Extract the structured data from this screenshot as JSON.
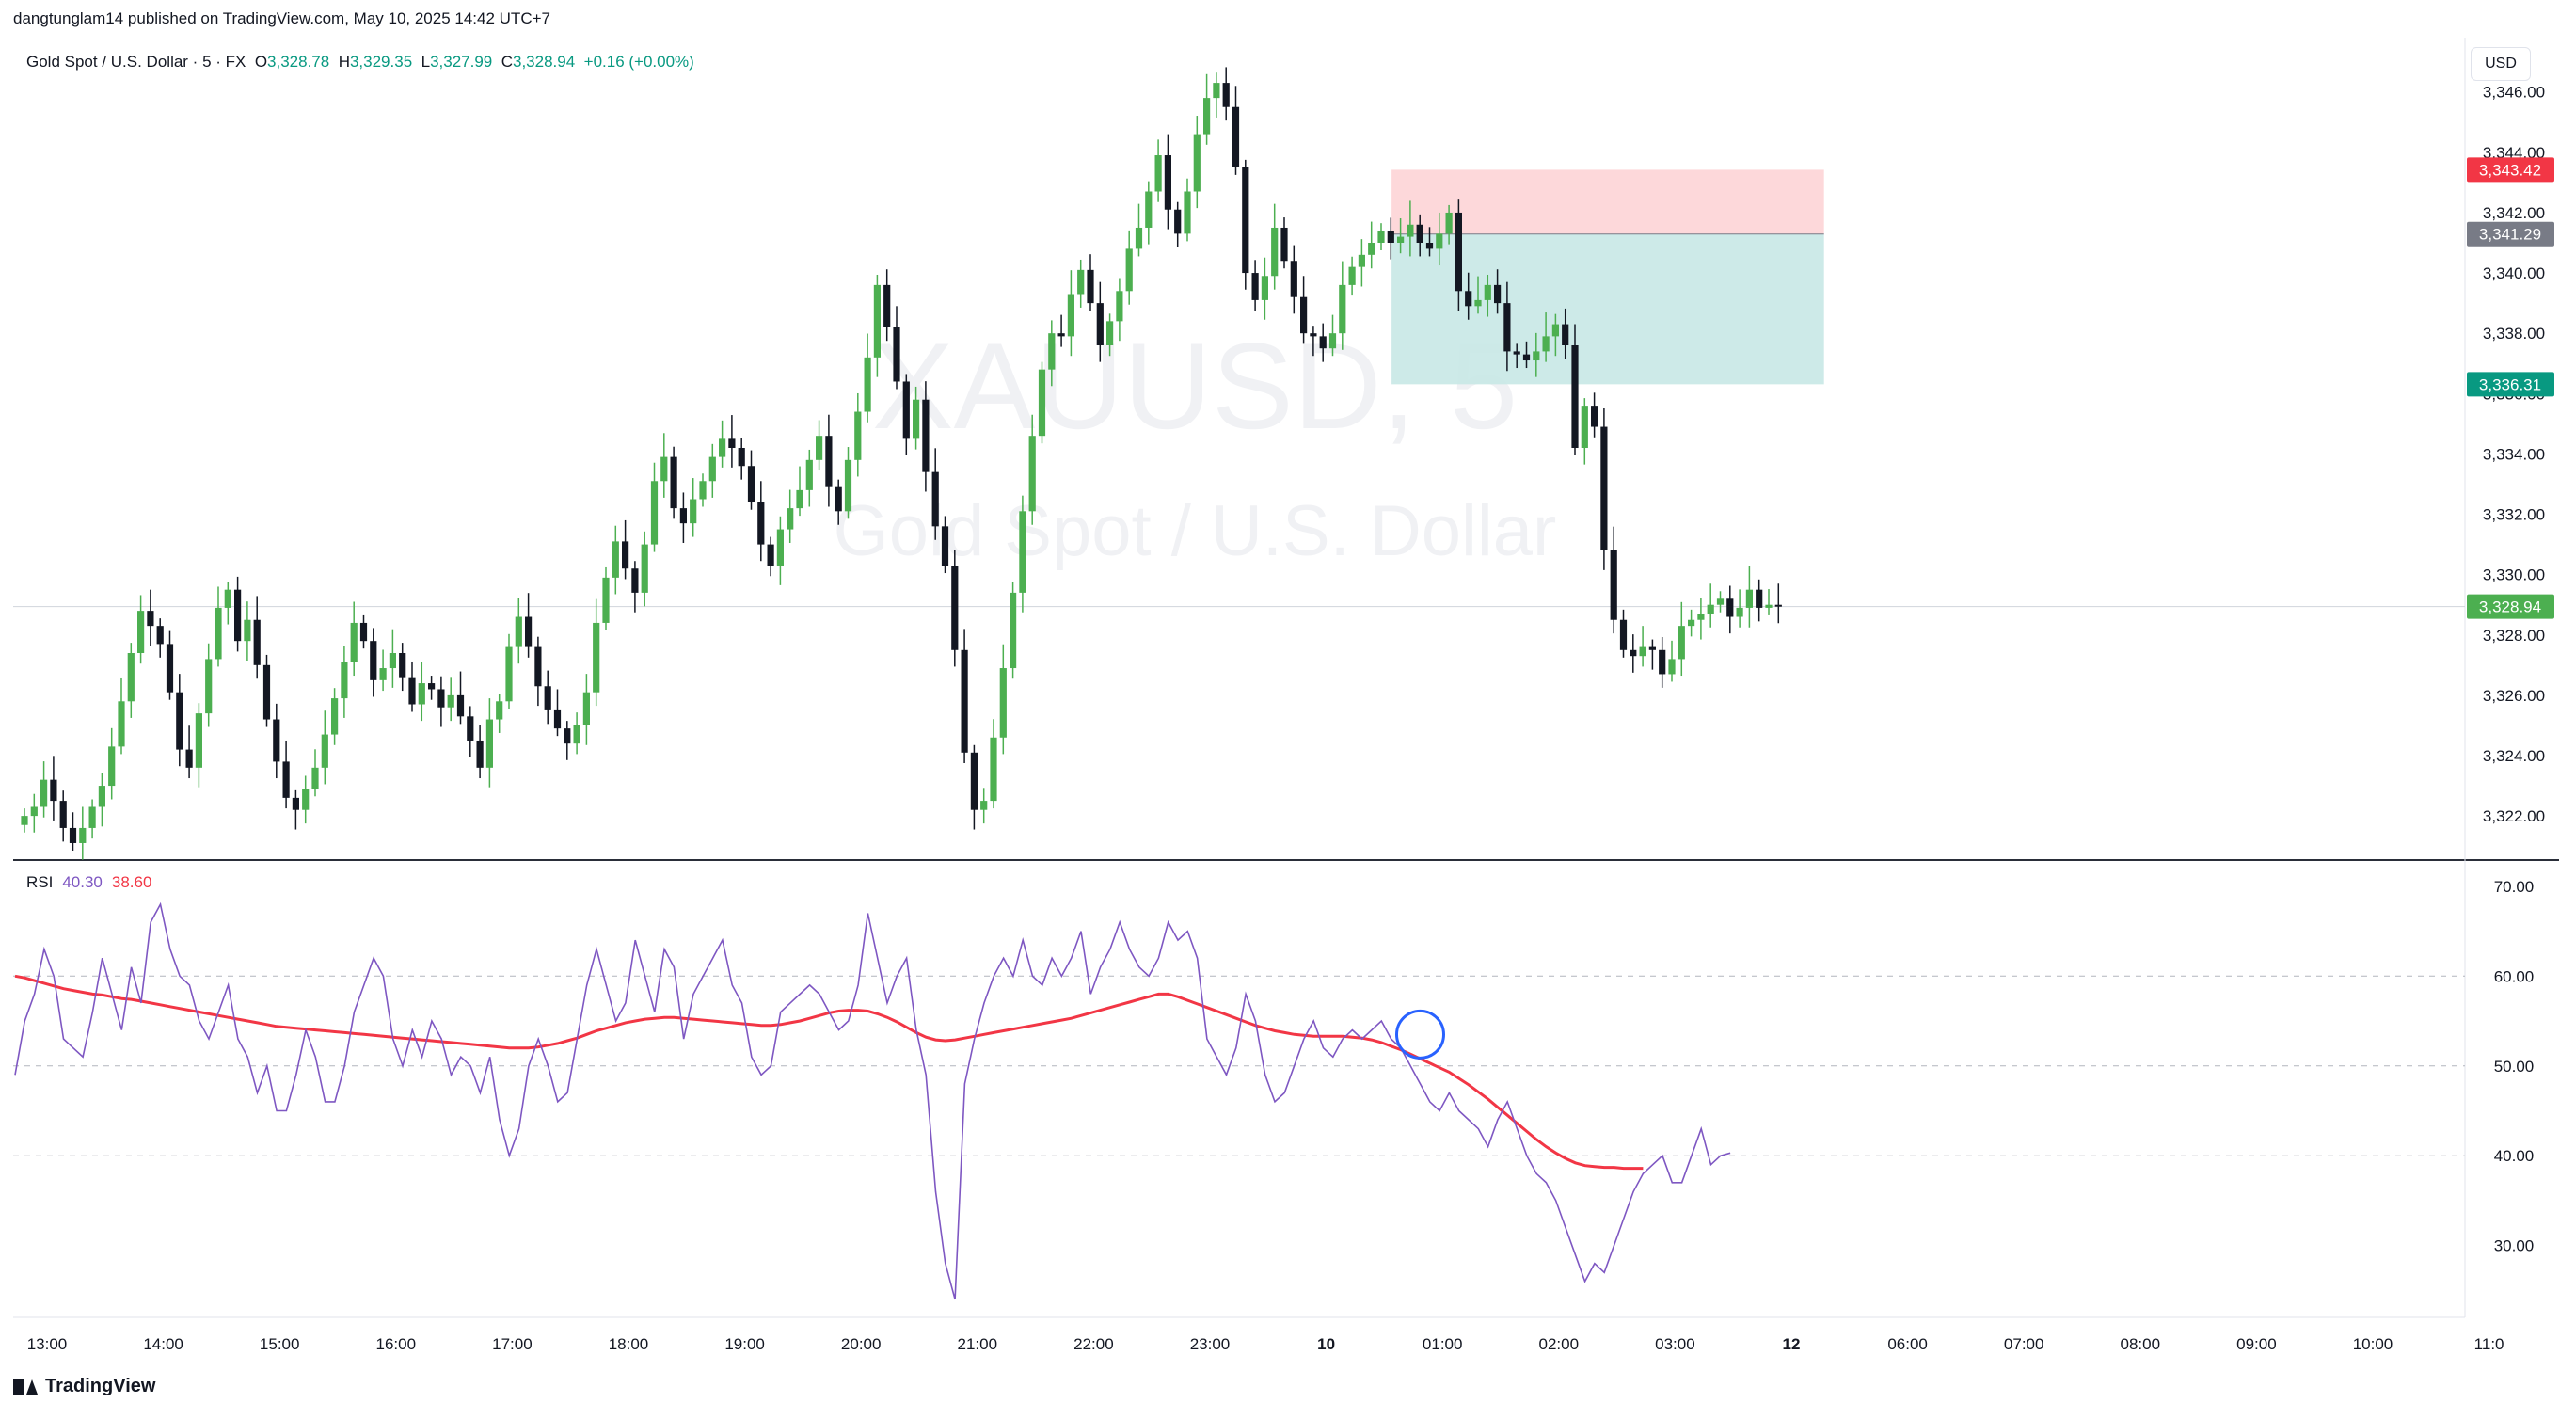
{
  "header": {
    "published": "dangtunglam14 published on TradingView.com, May 10, 2025 14:42 UTC+7"
  },
  "symbol": {
    "name": "Gold Spot / U.S. Dollar · 5 · FX",
    "o_label": "O",
    "o": "3,328.78",
    "h_label": "H",
    "h": "3,329.35",
    "l_label": "L",
    "l": "3,327.99",
    "c_label": "C",
    "c": "3,328.94",
    "change": "+0.16 (+0.00%)"
  },
  "watermark": {
    "ticker": "XAUUSD, 5",
    "desc": "Gold Spot / U.S. Dollar"
  },
  "currency_button": "USD",
  "rsi": {
    "label": "RSI",
    "value": "40.30",
    "ma_value": "38.60"
  },
  "footer": {
    "brand": "TradingView"
  },
  "colors": {
    "up": "#4caf50",
    "down": "#131722",
    "rsi": "#7e57c2",
    "rsi_ma": "#f23645",
    "stop_zone": "#fccbcd",
    "target_zone": "#c8e8e5",
    "stop_badge": "#f23645",
    "entry_badge": "#787b86",
    "target_badge": "#089981",
    "last_badge": "#4caf50",
    "marker_circle": "#2962ff"
  },
  "chart_data": [
    {
      "type": "candlestick",
      "title": "Gold Spot / U.S. Dollar",
      "interval": "5",
      "x_ticks": [
        "13:00",
        "14:00",
        "15:00",
        "16:00",
        "17:00",
        "18:00",
        "19:00",
        "20:00",
        "21:00",
        "22:00",
        "23:00",
        "10",
        "01:00",
        "02:00",
        "03:00",
        "12",
        "06:00",
        "07:00",
        "08:00",
        "09:00",
        "10:00",
        "11:0"
      ],
      "y_ticks": [
        "3,322.00",
        "3,324.00",
        "3,326.00",
        "3,328.00",
        "3,330.00",
        "3,332.00",
        "3,334.00",
        "3,336.00",
        "3,338.00",
        "3,340.00",
        "3,342.00",
        "3,344.00",
        "3,346.00"
      ],
      "ylim": [
        3320.6,
        3347.8
      ],
      "close_path": [
        3322.0,
        3322.3,
        3323.2,
        3322.5,
        3321.6,
        3321.1,
        3321.6,
        3322.3,
        3323.0,
        3324.3,
        3325.8,
        3327.4,
        3328.8,
        3328.3,
        3327.7,
        3326.1,
        3324.2,
        3323.6,
        3325.4,
        3327.2,
        3328.9,
        3329.5,
        3327.8,
        3328.5,
        3327.0,
        3325.2,
        3323.8,
        3322.6,
        3322.2,
        3322.9,
        3323.6,
        3324.7,
        3325.9,
        3327.1,
        3328.4,
        3327.8,
        3326.5,
        3326.9,
        3327.4,
        3326.6,
        3325.7,
        3326.4,
        3326.2,
        3325.6,
        3326.0,
        3325.3,
        3324.5,
        3323.6,
        3325.2,
        3325.8,
        3327.6,
        3328.6,
        3327.6,
        3326.3,
        3325.5,
        3324.9,
        3324.4,
        3325.0,
        3326.1,
        3328.4,
        3329.9,
        3331.1,
        3330.2,
        3329.4,
        3331.0,
        3333.1,
        3333.9,
        3332.2,
        3331.7,
        3332.5,
        3333.1,
        3333.9,
        3334.5,
        3334.2,
        3333.6,
        3332.4,
        3331.0,
        3330.3,
        3331.5,
        3332.2,
        3332.8,
        3333.8,
        3334.6,
        3332.9,
        3332.1,
        3333.8,
        3335.4,
        3337.2,
        3339.6,
        3338.2,
        3336.4,
        3334.5,
        3335.8,
        3333.4,
        3331.6,
        3330.3,
        3327.5,
        3324.1,
        3322.2,
        3322.5,
        3324.6,
        3326.9,
        3329.4,
        3332.1,
        3334.6,
        3336.8,
        3338.0,
        3337.9,
        3339.3,
        3340.1,
        3339.0,
        3337.6,
        3338.4,
        3339.4,
        3340.8,
        3341.5,
        3342.7,
        3343.9,
        3342.1,
        3341.3,
        3342.7,
        3344.6,
        3345.8,
        3346.3,
        3345.5,
        3343.5,
        3340.0,
        3339.1,
        3339.9,
        3341.5,
        3340.4,
        3339.2,
        3338.0,
        3337.9,
        3337.5,
        3338.0,
        3339.6,
        3340.2,
        3340.6,
        3341.0,
        3341.4,
        3341.0,
        3341.2,
        3341.6,
        3341.0,
        3340.8,
        3341.3,
        3342.0,
        3339.4,
        3338.9,
        3339.1,
        3339.6,
        3339.0,
        3337.4,
        3337.3,
        3337.1,
        3337.4,
        3337.9,
        3338.3,
        3337.6,
        3334.2,
        3335.6,
        3334.9,
        3330.8,
        3328.5,
        3327.5,
        3327.3,
        3327.6,
        3327.5,
        3326.7,
        3327.2,
        3328.3,
        3328.5,
        3328.7,
        3329.0,
        3329.2,
        3328.6,
        3328.9,
        3329.5,
        3328.9,
        3329.0,
        3328.94
      ],
      "position_tool": {
        "stop": 3343.42,
        "entry": 3341.29,
        "target": 3336.31,
        "stop_label": "3,343.42",
        "entry_label": "3,341.29",
        "target_label": "3,336.31"
      },
      "last_price": 3328.94,
      "last_price_label": "3,328.94"
    },
    {
      "type": "line",
      "title": "RSI",
      "y_ticks": [
        "30.00",
        "40.00",
        "50.00",
        "60.00",
        "70.00"
      ],
      "ylim": [
        22,
        72.5
      ],
      "bands": [
        40,
        50,
        60
      ],
      "series": [
        {
          "name": "RSI",
          "values": [
            49,
            55,
            58,
            63,
            60,
            53,
            52,
            51,
            56,
            62,
            58,
            54,
            61,
            57,
            66,
            68,
            63,
            60,
            59,
            55,
            53,
            56,
            59,
            53,
            51,
            47,
            50,
            45,
            45,
            49,
            54,
            51,
            46,
            46,
            50,
            56,
            59,
            62,
            60,
            53,
            50,
            54,
            51,
            55,
            53,
            49,
            51,
            50,
            47,
            51,
            44,
            40,
            43,
            50,
            53,
            50,
            46,
            47,
            53,
            59,
            63,
            59,
            55,
            57,
            64,
            60,
            56,
            63,
            61,
            53,
            58,
            60,
            62,
            64,
            59,
            57,
            51,
            49,
            50,
            56,
            57,
            58,
            59,
            58,
            56,
            54,
            55,
            59,
            67,
            62,
            57,
            60,
            62,
            54,
            49,
            36,
            28,
            24,
            48,
            53,
            57,
            60,
            62,
            60,
            64,
            60,
            59,
            62,
            60,
            62,
            65,
            58,
            61,
            63,
            66,
            63,
            61,
            60,
            62,
            66,
            64,
            65,
            62,
            53,
            51,
            49,
            52,
            58,
            55,
            49,
            46,
            47,
            50,
            53,
            55,
            52,
            51,
            53,
            54,
            53,
            54,
            55,
            53,
            52,
            50,
            48,
            46,
            45,
            47,
            45,
            44,
            43,
            41,
            44,
            46,
            43,
            40,
            38,
            37,
            35,
            32,
            29,
            26,
            28,
            27,
            30,
            33,
            36,
            38,
            39,
            40,
            37,
            37,
            40,
            43,
            39,
            40,
            40.3
          ]
        },
        {
          "name": "RSI-based MA",
          "values": [
            60,
            59.8,
            59.5,
            59.2,
            58.9,
            58.6,
            58.4,
            58.2,
            58.0,
            57.9,
            57.7,
            57.5,
            57.4,
            57.2,
            57.0,
            56.8,
            56.6,
            56.4,
            56.2,
            56.0,
            55.8,
            55.6,
            55.4,
            55.2,
            55.0,
            54.8,
            54.6,
            54.4,
            54.3,
            54.2,
            54.1,
            54.0,
            53.9,
            53.8,
            53.7,
            53.6,
            53.5,
            53.4,
            53.3,
            53.2,
            53.1,
            53.0,
            52.9,
            52.8,
            52.7,
            52.6,
            52.5,
            52.4,
            52.3,
            52.2,
            52.1,
            52.0,
            52.0,
            52.0,
            52.1,
            52.3,
            52.5,
            52.8,
            53.1,
            53.5,
            53.9,
            54.2,
            54.5,
            54.8,
            55.0,
            55.2,
            55.3,
            55.4,
            55.4,
            55.3,
            55.2,
            55.1,
            55.0,
            54.9,
            54.8,
            54.7,
            54.6,
            54.5,
            54.5,
            54.6,
            54.8,
            55.0,
            55.3,
            55.6,
            55.9,
            56.1,
            56.2,
            56.2,
            56.1,
            55.8,
            55.4,
            54.9,
            54.3,
            53.7,
            53.2,
            52.9,
            52.8,
            52.9,
            53.1,
            53.3,
            53.5,
            53.7,
            53.9,
            54.1,
            54.3,
            54.5,
            54.7,
            54.9,
            55.1,
            55.3,
            55.6,
            55.9,
            56.2,
            56.5,
            56.8,
            57.1,
            57.4,
            57.7,
            58.0,
            58.0,
            57.7,
            57.3,
            56.9,
            56.5,
            56.1,
            55.7,
            55.3,
            54.9,
            54.5,
            54.2,
            53.9,
            53.7,
            53.5,
            53.4,
            53.3,
            53.3,
            53.3,
            53.3,
            53.2,
            53.1,
            52.9,
            52.6,
            52.2,
            51.8,
            51.3,
            50.8,
            50.3,
            49.8,
            49.3,
            48.6,
            47.9,
            47.1,
            46.3,
            45.4,
            44.5,
            43.6,
            42.7,
            41.8,
            41.0,
            40.3,
            39.7,
            39.2,
            38.9,
            38.8,
            38.7,
            38.7,
            38.6,
            38.6,
            38.6
          ]
        }
      ]
    }
  ]
}
